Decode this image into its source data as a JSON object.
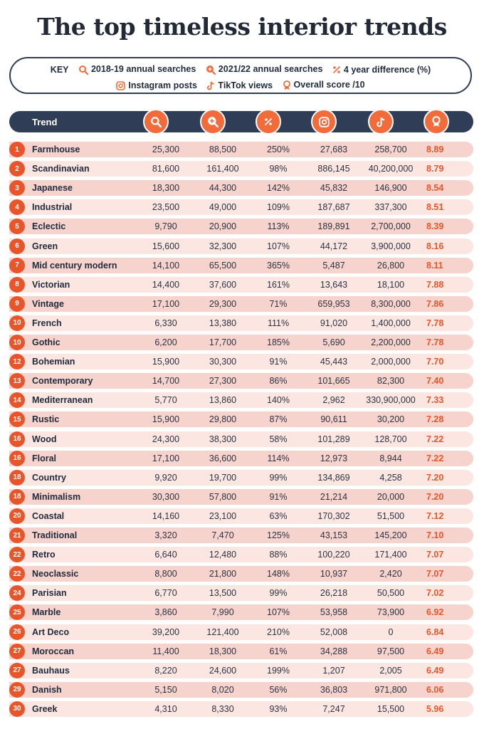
{
  "title": "The top timeless interior trends",
  "key": {
    "label": "KEY",
    "items": [
      {
        "icon": "search-icon",
        "text": "2018-19 annual searches"
      },
      {
        "icon": "search-plus-icon",
        "text": "2021/22 annual searches"
      },
      {
        "icon": "percent-icon",
        "text": "4 year difference (%)"
      },
      {
        "icon": "instagram-icon",
        "text": "Instagram posts"
      },
      {
        "icon": "tiktok-icon",
        "text": "TikTok views"
      },
      {
        "icon": "award-icon",
        "text": "Overall score /10"
      }
    ]
  },
  "colors": {
    "accent": "#e8552b",
    "header": "#2f3d56",
    "row_a": "#f6d3cc",
    "row_b": "#fbe6e1"
  },
  "chart_data": {
    "type": "table",
    "columns": [
      "Trend",
      "2018-19 annual searches",
      "2021/22 annual searches",
      "4 year difference (%)",
      "Instagram posts",
      "TikTok views",
      "Overall score /10"
    ],
    "header_label": "Trend",
    "rows": [
      {
        "rank": "1",
        "trend": "Farmhouse",
        "searches_2018_19": "25,300",
        "searches_2021_22": "88,500",
        "difference": "250%",
        "instagram": "27,683",
        "tiktok": "258,700",
        "score": "8.89"
      },
      {
        "rank": "2",
        "trend": "Scandinavian",
        "searches_2018_19": "81,600",
        "searches_2021_22": "161,400",
        "difference": "98%",
        "instagram": "886,145",
        "tiktok": "40,200,000",
        "score": "8.79"
      },
      {
        "rank": "3",
        "trend": "Japanese",
        "searches_2018_19": "18,300",
        "searches_2021_22": "44,300",
        "difference": "142%",
        "instagram": "45,832",
        "tiktok": "146,900",
        "score": "8.54"
      },
      {
        "rank": "4",
        "trend": "Industrial",
        "searches_2018_19": "23,500",
        "searches_2021_22": "49,000",
        "difference": "109%",
        "instagram": "187,687",
        "tiktok": "337,300",
        "score": "8.51"
      },
      {
        "rank": "5",
        "trend": "Eclectic",
        "searches_2018_19": "9,790",
        "searches_2021_22": "20,900",
        "difference": "113%",
        "instagram": "189,891",
        "tiktok": "2,700,000",
        "score": "8.39"
      },
      {
        "rank": "6",
        "trend": "Green",
        "searches_2018_19": "15,600",
        "searches_2021_22": "32,300",
        "difference": "107%",
        "instagram": "44,172",
        "tiktok": "3,900,000",
        "score": "8.16"
      },
      {
        "rank": "7",
        "trend": "Mid century modern",
        "searches_2018_19": "14,100",
        "searches_2021_22": "65,500",
        "difference": "365%",
        "instagram": "5,487",
        "tiktok": "26,800",
        "score": "8.11"
      },
      {
        "rank": "8",
        "trend": "Victorian",
        "searches_2018_19": "14,400",
        "searches_2021_22": "37,600",
        "difference": "161%",
        "instagram": "13,643",
        "tiktok": "18,100",
        "score": "7.88"
      },
      {
        "rank": "9",
        "trend": "Vintage",
        "searches_2018_19": "17,100",
        "searches_2021_22": "29,300",
        "difference": "71%",
        "instagram": "659,953",
        "tiktok": "8,300,000",
        "score": "7.86"
      },
      {
        "rank": "10",
        "trend": "French",
        "searches_2018_19": "6,330",
        "searches_2021_22": "13,380",
        "difference": "111%",
        "instagram": "91,020",
        "tiktok": "1,400,000",
        "score": "7.78"
      },
      {
        "rank": "10",
        "trend": "Gothic",
        "searches_2018_19": "6,200",
        "searches_2021_22": "17,700",
        "difference": "185%",
        "instagram": "5,690",
        "tiktok": "2,200,000",
        "score": "7.78"
      },
      {
        "rank": "12",
        "trend": "Bohemian",
        "searches_2018_19": "15,900",
        "searches_2021_22": "30,300",
        "difference": "91%",
        "instagram": "45,443",
        "tiktok": "2,000,000",
        "score": "7.70"
      },
      {
        "rank": "13",
        "trend": "Contemporary",
        "searches_2018_19": "14,700",
        "searches_2021_22": "27,300",
        "difference": "86%",
        "instagram": "101,665",
        "tiktok": "82,300",
        "score": "7.40"
      },
      {
        "rank": "14",
        "trend": "Mediterranean",
        "searches_2018_19": "5,770",
        "searches_2021_22": "13,860",
        "difference": "140%",
        "instagram": "2,962",
        "tiktok": "330,900,000",
        "score": "7.33"
      },
      {
        "rank": "15",
        "trend": "Rustic",
        "searches_2018_19": "15,900",
        "searches_2021_22": "29,800",
        "difference": "87%",
        "instagram": "90,611",
        "tiktok": "30,200",
        "score": "7.28"
      },
      {
        "rank": "16",
        "trend": "Wood",
        "searches_2018_19": "24,300",
        "searches_2021_22": "38,300",
        "difference": "58%",
        "instagram": "101,289",
        "tiktok": "128,700",
        "score": "7.22"
      },
      {
        "rank": "16",
        "trend": "Floral",
        "searches_2018_19": "17,100",
        "searches_2021_22": "36,600",
        "difference": "114%",
        "instagram": "12,973",
        "tiktok": "8,944",
        "score": "7.22"
      },
      {
        "rank": "18",
        "trend": "Country",
        "searches_2018_19": "9,920",
        "searches_2021_22": "19,700",
        "difference": "99%",
        "instagram": "134,869",
        "tiktok": "4,258",
        "score": "7.20"
      },
      {
        "rank": "18",
        "trend": "Minimalism",
        "searches_2018_19": "30,300",
        "searches_2021_22": "57,800",
        "difference": "91%",
        "instagram": "21,214",
        "tiktok": "20,000",
        "score": "7.20"
      },
      {
        "rank": "20",
        "trend": "Coastal",
        "searches_2018_19": "14,160",
        "searches_2021_22": "23,100",
        "difference": "63%",
        "instagram": "170,302",
        "tiktok": "51,500",
        "score": "7.12"
      },
      {
        "rank": "21",
        "trend": "Traditional",
        "searches_2018_19": "3,320",
        "searches_2021_22": "7,470",
        "difference": "125%",
        "instagram": "43,153",
        "tiktok": "145,200",
        "score": "7.10"
      },
      {
        "rank": "22",
        "trend": "Retro",
        "searches_2018_19": "6,640",
        "searches_2021_22": "12,480",
        "difference": "88%",
        "instagram": "100,220",
        "tiktok": "171,400",
        "score": "7.07"
      },
      {
        "rank": "22",
        "trend": "Neoclassic",
        "searches_2018_19": "8,800",
        "searches_2021_22": "21,800",
        "difference": "148%",
        "instagram": "10,937",
        "tiktok": "2,420",
        "score": "7.07"
      },
      {
        "rank": "24",
        "trend": "Parisian",
        "searches_2018_19": "6,770",
        "searches_2021_22": "13,500",
        "difference": "99%",
        "instagram": "26,218",
        "tiktok": "50,500",
        "score": "7.02"
      },
      {
        "rank": "25",
        "trend": "Marble",
        "searches_2018_19": "3,860",
        "searches_2021_22": "7,990",
        "difference": "107%",
        "instagram": "53,958",
        "tiktok": "73,900",
        "score": "6.92"
      },
      {
        "rank": "26",
        "trend": "Art Deco",
        "searches_2018_19": "39,200",
        "searches_2021_22": "121,400",
        "difference": "210%",
        "instagram": "52,008",
        "tiktok": "0",
        "score": "6.84"
      },
      {
        "rank": "27",
        "trend": "Moroccan",
        "searches_2018_19": "11,400",
        "searches_2021_22": "18,300",
        "difference": "61%",
        "instagram": "34,288",
        "tiktok": "97,500",
        "score": "6.49"
      },
      {
        "rank": "27",
        "trend": "Bauhaus",
        "searches_2018_19": "8,220",
        "searches_2021_22": "24,600",
        "difference": "199%",
        "instagram": "1,207",
        "tiktok": "2,005",
        "score": "6.49"
      },
      {
        "rank": "29",
        "trend": "Danish",
        "searches_2018_19": "5,150",
        "searches_2021_22": "8,020",
        "difference": "56%",
        "instagram": "36,803",
        "tiktok": "971,800",
        "score": "6.06"
      },
      {
        "rank": "30",
        "trend": "Greek",
        "searches_2018_19": "4,310",
        "searches_2021_22": "8,330",
        "difference": "93%",
        "instagram": "7,247",
        "tiktok": "15,500",
        "score": "5.96"
      }
    ]
  }
}
